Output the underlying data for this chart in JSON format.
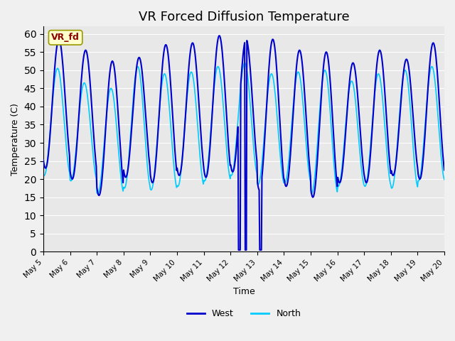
{
  "title": "VR Forced Diffusion Temperature",
  "xlabel": "Time",
  "ylabel": "Temperature (C)",
  "ylim": [
    0,
    62
  ],
  "yticks": [
    0,
    5,
    10,
    15,
    20,
    25,
    30,
    35,
    40,
    45,
    50,
    55,
    60
  ],
  "west_color": "#0000CD",
  "north_color": "#00CCFF",
  "legend_west": "West",
  "legend_north": "North",
  "vr_fd_label": "VR_fd",
  "vr_fd_color": "#8B0000",
  "bg_color": "#E8E8E8",
  "xtick_labels": [
    "May 5",
    "May 6",
    "May 7",
    "May 8",
    "May 9",
    "May 10",
    "May 11",
    "May 12",
    "May 13",
    "May 14",
    "May 15",
    "May 16",
    "May 17",
    "May 18",
    "May 19",
    "May 20"
  ],
  "title_fontsize": 13,
  "west_peaks": [
    58.5,
    55.5,
    52.5,
    53.5,
    57.0,
    57.5,
    59.5,
    58.5,
    58.5,
    55.5,
    55.0,
    52.0,
    55.5,
    53.0,
    57.5
  ],
  "west_troughs": [
    23.0,
    20.0,
    15.5,
    20.5,
    19.0,
    21.0,
    20.5,
    22.0,
    17.0,
    18.0,
    15.0,
    19.0,
    19.0,
    21.0,
    20.0
  ],
  "north_peaks": [
    50.5,
    46.5,
    45.0,
    51.0,
    49.0,
    49.5,
    51.0,
    52.0,
    49.0,
    49.5,
    50.0,
    47.0,
    49.0,
    50.0,
    51.0
  ],
  "north_troughs": [
    21.0,
    19.5,
    16.0,
    17.5,
    17.0,
    18.0,
    19.5,
    21.0,
    18.5,
    19.0,
    16.0,
    18.0,
    18.0,
    17.5,
    19.5
  ]
}
